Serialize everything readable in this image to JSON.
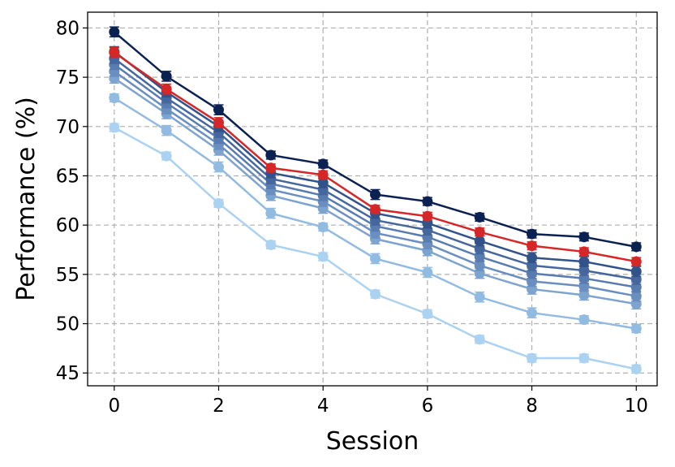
{
  "chart_data": {
    "type": "line",
    "x_label": "Session",
    "y_label": "Performance (%)",
    "xlim": [
      -0.51,
      10.4
    ],
    "ylim": [
      43.7,
      81.6
    ],
    "xticks": [
      0,
      2,
      4,
      6,
      8,
      10
    ],
    "yticks": [
      45,
      50,
      55,
      60,
      65,
      70,
      75,
      80
    ],
    "grid": true,
    "x": [
      0,
      1,
      2,
      3,
      4,
      5,
      6,
      7,
      8,
      9,
      10
    ],
    "series": [
      {
        "color": "#abd2f1",
        "values": [
          69.9,
          67.0,
          62.2,
          58.0,
          56.8,
          53.0,
          51.0,
          48.4,
          46.5,
          46.5,
          45.4
        ],
        "errors": [
          0.4,
          0.4,
          0.4,
          0.4,
          0.4,
          0.4,
          0.4,
          0.4,
          0.4,
          0.4,
          0.4
        ]
      },
      {
        "color": "#92bbe2",
        "values": [
          72.9,
          69.6,
          65.9,
          61.2,
          59.8,
          56.6,
          55.2,
          52.7,
          51.1,
          50.4,
          49.5
        ],
        "errors": [
          0.4,
          0.5,
          0.5,
          0.5,
          0.4,
          0.5,
          0.5,
          0.5,
          0.5,
          0.4,
          0.4
        ]
      },
      {
        "color": "#7da3cf",
        "values": [
          74.9,
          71.3,
          67.6,
          63.0,
          61.7,
          58.6,
          57.4,
          55.1,
          53.5,
          52.9,
          52.0
        ],
        "errors": [
          0.5,
          0.5,
          0.5,
          0.5,
          0.5,
          0.5,
          0.5,
          0.5,
          0.5,
          0.5,
          0.5
        ]
      },
      {
        "color": "#6a8ec0",
        "values": [
          75.6,
          71.8,
          68.2,
          63.6,
          62.4,
          59.2,
          58.1,
          55.9,
          54.3,
          53.8,
          52.8
        ],
        "errors": [
          0.5,
          0.5,
          0.5,
          0.5,
          0.5,
          0.5,
          0.5,
          0.5,
          0.5,
          0.5,
          0.5
        ]
      },
      {
        "color": "#587bb0",
        "values": [
          76.3,
          72.4,
          68.8,
          64.2,
          63.0,
          59.9,
          58.8,
          56.8,
          55.1,
          54.6,
          53.7
        ],
        "errors": [
          0.5,
          0.5,
          0.5,
          0.5,
          0.5,
          0.5,
          0.5,
          0.5,
          0.5,
          0.5,
          0.5
        ]
      },
      {
        "color": "#46679e",
        "values": [
          76.9,
          72.9,
          69.4,
          64.7,
          63.6,
          60.5,
          59.5,
          57.6,
          55.9,
          55.4,
          54.5
        ],
        "errors": [
          0.5,
          0.5,
          0.5,
          0.5,
          0.5,
          0.5,
          0.5,
          0.5,
          0.5,
          0.5,
          0.5
        ]
      },
      {
        "color": "#32538a",
        "values": [
          77.6,
          73.5,
          70.0,
          65.3,
          64.3,
          61.2,
          60.2,
          58.4,
          56.7,
          56.3,
          55.3
        ],
        "errors": [
          0.5,
          0.5,
          0.5,
          0.5,
          0.5,
          0.5,
          0.5,
          0.5,
          0.5,
          0.5,
          0.5
        ]
      },
      {
        "color": "#0b2152",
        "values": [
          79.6,
          75.1,
          71.7,
          67.1,
          66.2,
          63.1,
          62.4,
          60.8,
          59.1,
          58.8,
          57.8
        ],
        "errors": [
          0.5,
          0.5,
          0.5,
          0.4,
          0.4,
          0.5,
          0.4,
          0.4,
          0.4,
          0.4,
          0.4
        ]
      },
      {
        "color": "#d62728",
        "values": [
          77.5,
          73.8,
          70.4,
          65.8,
          65.1,
          61.6,
          60.9,
          59.3,
          57.9,
          57.3,
          56.3
        ],
        "errors": [
          0.5,
          0.5,
          0.5,
          0.4,
          0.4,
          0.4,
          0.4,
          0.4,
          0.4,
          0.4,
          0.4
        ]
      }
    ]
  }
}
